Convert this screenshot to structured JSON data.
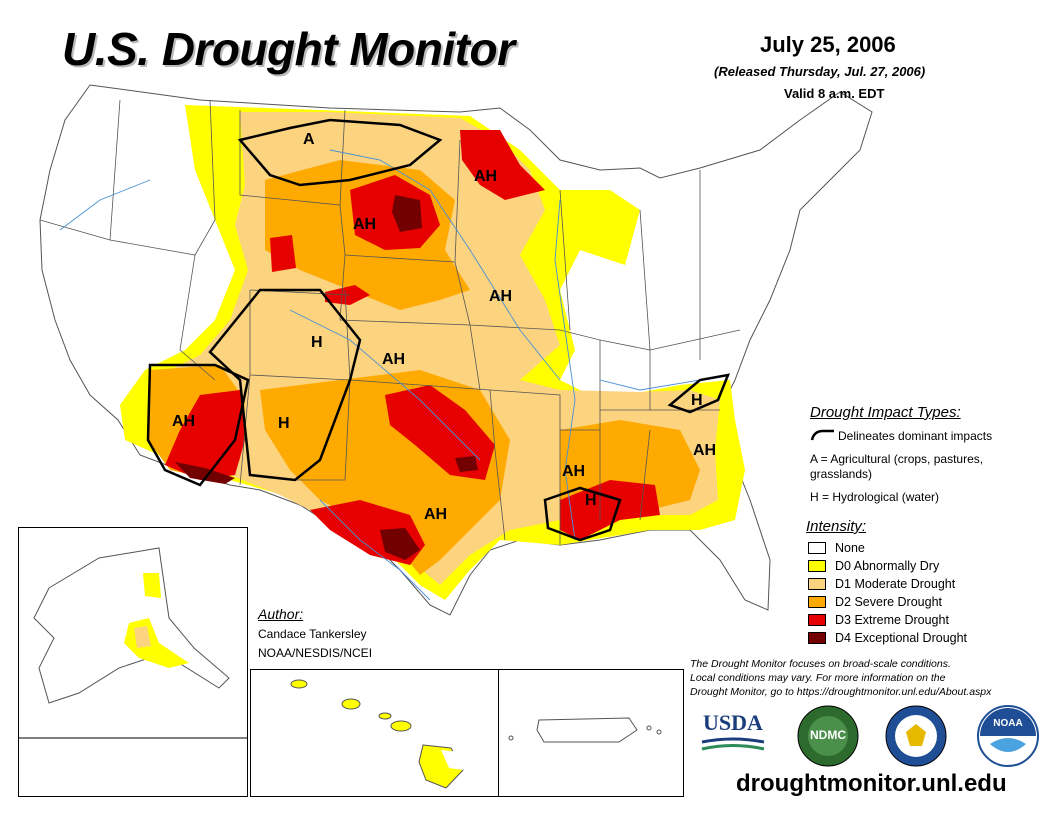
{
  "header": {
    "title": "U.S. Drought Monitor",
    "date": "July 25, 2006",
    "released": "(Released Thursday, Jul. 27, 2006)",
    "valid": "Valid 8 a.m. EDT"
  },
  "map": {
    "impact_labels": [
      "A",
      "AH",
      "AH",
      "AH",
      "H",
      "AH",
      "AH",
      "H",
      "AH",
      "AH",
      "H",
      "H",
      "AH"
    ]
  },
  "impact_types": {
    "heading": "Drought Impact Types:",
    "delineates": "Delineates dominant impacts",
    "agricultural": "A = Agricultural (crops, pastures,",
    "agricultural_cont": "grasslands)",
    "hydrological": "H = Hydrological (water)"
  },
  "intensity": {
    "heading": "Intensity:",
    "levels": [
      {
        "label": "None",
        "color": "#ffffff"
      },
      {
        "label": "D0 Abnormally Dry",
        "color": "#ffff00"
      },
      {
        "label": "D1 Moderate Drought",
        "color": "#fcd37f"
      },
      {
        "label": "D2 Severe Drought",
        "color": "#ffaa00"
      },
      {
        "label": "D3 Extreme Drought",
        "color": "#e60000"
      },
      {
        "label": "D4 Exceptional Drought",
        "color": "#730000"
      }
    ]
  },
  "author": {
    "heading": "Author:",
    "name": "Candace Tankersley",
    "org": "NOAA/NESDIS/NCEI"
  },
  "note": {
    "line1": "The Drought Monitor focuses on broad-scale conditions.",
    "line2": "Local conditions may vary. For more information on the",
    "line3": "Drought Monitor, go to https://droughtmonitor.unl.edu/About.aspx"
  },
  "logos": {
    "usda": "USDA",
    "ndmc": "NDMC",
    "noaa": "NOAA"
  },
  "footer": {
    "url": "droughtmonitor.unl.edu"
  }
}
